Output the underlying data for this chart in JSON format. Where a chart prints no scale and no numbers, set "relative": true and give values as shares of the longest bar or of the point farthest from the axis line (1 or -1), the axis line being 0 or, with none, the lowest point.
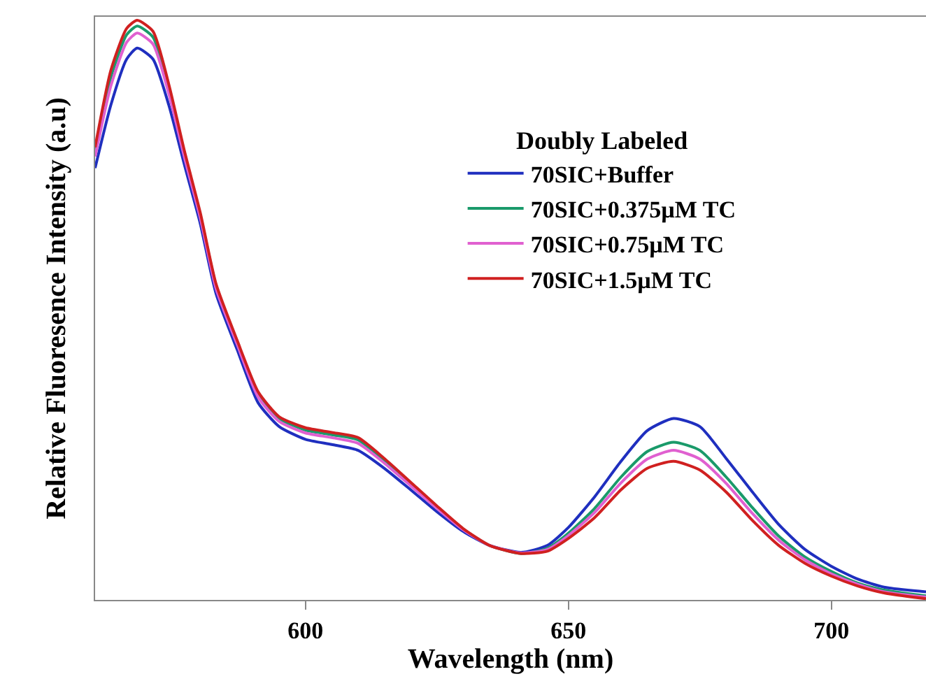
{
  "chart_data": {
    "type": "line",
    "xlabel": "Wavelength (nm)",
    "ylabel": "Relative Fluoresence Intensity (a.u)",
    "legend_title": "Doubly Labeled",
    "legend": "top right",
    "marker": "none",
    "line_style": "solid",
    "relative": true,
    "x": [
      560,
      563,
      566,
      568,
      571,
      574,
      577,
      580,
      583,
      587,
      591,
      595,
      600,
      605,
      610,
      615,
      620,
      625,
      630,
      635,
      641,
      646,
      650,
      655,
      660,
      665,
      670,
      675,
      680,
      685,
      690,
      695,
      700,
      705,
      710,
      718
    ],
    "xlim": [
      560,
      718
    ],
    "xticks": [
      600,
      650,
      700
    ],
    "series": [
      {
        "name": "70SIC+Buffer",
        "color": "#1f2fbf",
        "values": [
          0.745,
          0.854,
          0.933,
          0.952,
          0.933,
          0.854,
          0.75,
          0.649,
          0.528,
          0.432,
          0.34,
          0.299,
          0.277,
          0.268,
          0.258,
          0.227,
          0.19,
          0.152,
          0.118,
          0.094,
          0.082,
          0.094,
          0.125,
          0.178,
          0.239,
          0.292,
          0.313,
          0.299,
          0.244,
          0.186,
          0.13,
          0.087,
          0.058,
          0.036,
          0.022,
          0.014
        ]
      },
      {
        "name": "70SIC+0.375µM TC",
        "color": "#1a9a6a",
        "values": [
          0.774,
          0.902,
          0.975,
          0.99,
          0.971,
          0.883,
          0.769,
          0.664,
          0.542,
          0.445,
          0.355,
          0.313,
          0.293,
          0.285,
          0.276,
          0.241,
          0.2,
          0.16,
          0.122,
          0.094,
          0.08,
          0.089,
          0.115,
          0.158,
          0.212,
          0.256,
          0.272,
          0.258,
          0.212,
          0.159,
          0.11,
          0.074,
          0.049,
          0.029,
          0.017,
          0.007
        ]
      },
      {
        "name": "70SIC+0.75µM TC",
        "color": "#e060d0",
        "values": [
          0.765,
          0.887,
          0.962,
          0.978,
          0.959,
          0.874,
          0.763,
          0.659,
          0.537,
          0.441,
          0.35,
          0.308,
          0.288,
          0.28,
          0.27,
          0.236,
          0.197,
          0.158,
          0.121,
          0.094,
          0.081,
          0.087,
          0.111,
          0.151,
          0.202,
          0.243,
          0.258,
          0.243,
          0.201,
          0.149,
          0.103,
          0.069,
          0.045,
          0.027,
          0.014,
          0.005
        ]
      },
      {
        "name": "70SIC+1.5µM TC",
        "color": "#d02020",
        "values": [
          0.781,
          0.914,
          0.986,
          1.0,
          0.981,
          0.89,
          0.774,
          0.668,
          0.545,
          0.448,
          0.359,
          0.316,
          0.297,
          0.289,
          0.28,
          0.244,
          0.203,
          0.162,
          0.123,
          0.094,
          0.08,
          0.084,
          0.106,
          0.142,
          0.19,
          0.227,
          0.239,
          0.224,
          0.186,
          0.137,
          0.094,
          0.063,
          0.041,
          0.024,
          0.012,
          0.002
        ]
      }
    ]
  }
}
